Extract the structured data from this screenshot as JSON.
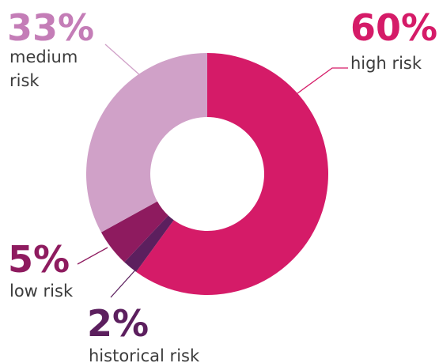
{
  "chart_data": {
    "type": "pie",
    "donut": true,
    "title": "",
    "slices": [
      {
        "key": "high",
        "percent": "60%",
        "label": "high risk",
        "value": 60,
        "color": "#d51b68"
      },
      {
        "key": "historical",
        "percent": "2%",
        "label": "historical risk",
        "value": 2,
        "color": "#5c1f5e"
      },
      {
        "key": "low",
        "percent": "5%",
        "label": "low risk",
        "value": 5,
        "color": "#8e1b5f"
      },
      {
        "key": "medium",
        "percent": "33%",
        "label": "medium risk",
        "value": 33,
        "color": "#d0a1c8"
      }
    ],
    "legend": "none"
  }
}
